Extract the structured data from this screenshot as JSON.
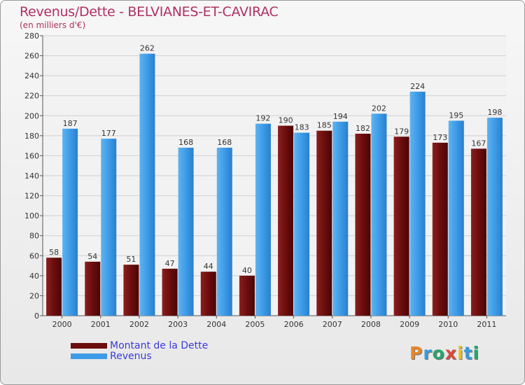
{
  "title": "Revenus/Dette - BELVIANES-ET-CAVIRAC",
  "subtitle": "(en milliers d'€)",
  "logo": "Proxiti",
  "colors": {
    "debt": "#6b0d0d",
    "revenue": "#3d9be8",
    "title": "#b03060",
    "legend_text": "#3a3adb",
    "grid": "#cccccc"
  },
  "chart_data": {
    "type": "bar",
    "categories": [
      "2000",
      "2001",
      "2002",
      "2003",
      "2004",
      "2005",
      "2006",
      "2007",
      "2008",
      "2009",
      "2010",
      "2011"
    ],
    "series": [
      {
        "name": "Montant de la Dette",
        "values": [
          58,
          54,
          51,
          47,
          44,
          40,
          190,
          185,
          182,
          179,
          173,
          167
        ]
      },
      {
        "name": "Revenus",
        "values": [
          187,
          177,
          262,
          168,
          168,
          192,
          183,
          194,
          202,
          224,
          195,
          198
        ]
      }
    ],
    "ylim": [
      0,
      280
    ],
    "yticks": [
      0,
      20,
      40,
      60,
      80,
      100,
      120,
      140,
      160,
      180,
      200,
      220,
      240,
      260,
      280
    ],
    "grid": true,
    "legend": "bottom-left"
  }
}
